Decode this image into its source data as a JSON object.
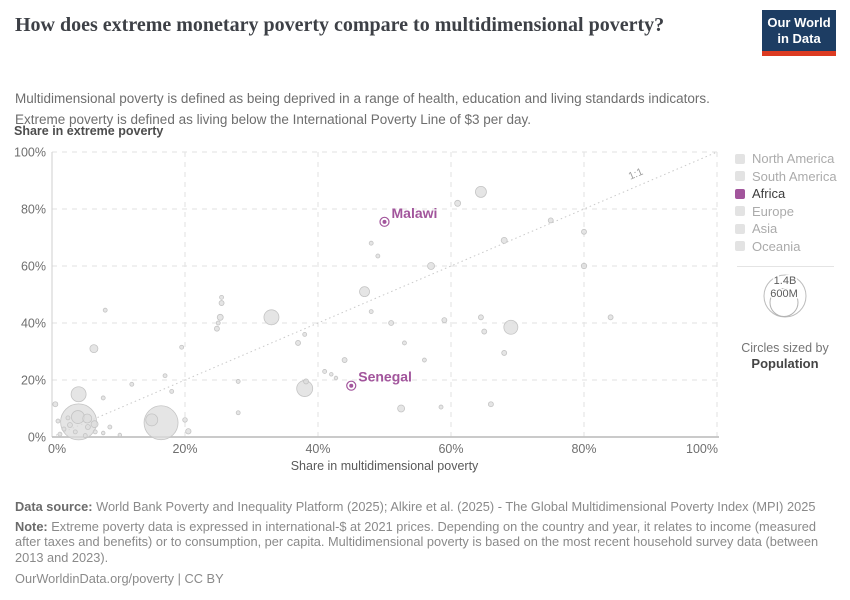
{
  "header": {
    "title": "How does extreme monetary poverty compare to multidimensional poverty?",
    "subtitle_line1": "Multidimensional poverty is defined as being deprived in a range of health, education and living standards indicators.",
    "subtitle_line2": "Extreme poverty is defined as living below the International Poverty Line of $3 per day.",
    "logo_line1": "Our World",
    "logo_line2": "in Data",
    "logo_bg": "#1d3d63",
    "logo_stripe": "#dc3a21"
  },
  "chart_data": {
    "type": "scatter",
    "xlabel": "Share in multidimensional poverty",
    "ylabel": "Share in extreme poverty",
    "xlim": [
      0,
      100
    ],
    "ylim": [
      0,
      100
    ],
    "grid": true,
    "x_ticks": [
      {
        "value": 0,
        "label": "0%"
      },
      {
        "value": 20,
        "label": "20%"
      },
      {
        "value": 40,
        "label": "40%"
      },
      {
        "value": 60,
        "label": "60%"
      },
      {
        "value": 80,
        "label": "80%"
      },
      {
        "value": 100,
        "label": "100%"
      }
    ],
    "y_ticks": [
      {
        "value": 0,
        "label": "0%"
      },
      {
        "value": 20,
        "label": "20%"
      },
      {
        "value": 40,
        "label": "40%"
      },
      {
        "value": 60,
        "label": "60%"
      },
      {
        "value": 80,
        "label": "80%"
      },
      {
        "value": 100,
        "label": "100%"
      }
    ],
    "reference_line": {
      "label": "1:1",
      "from": [
        0,
        0
      ],
      "to": [
        100,
        100
      ]
    },
    "point_fill": "#dcdcdc",
    "point_stroke": "#c4c4c4",
    "highlight_color": "#a2559c",
    "labeled_points": [
      {
        "name": "Malawi",
        "x": 50,
        "y": 75.5,
        "r": 3
      },
      {
        "name": "Senegal",
        "x": 45,
        "y": 18,
        "r": 3
      }
    ],
    "points": [
      {
        "x": 61,
        "y": 82,
        "r": 3
      },
      {
        "x": 64.5,
        "y": 86,
        "r": 5.5
      },
      {
        "x": 48,
        "y": 68,
        "r": 2
      },
      {
        "x": 49,
        "y": 63.5,
        "r": 2
      },
      {
        "x": 57,
        "y": 60,
        "r": 3.5
      },
      {
        "x": 68,
        "y": 69,
        "r": 3
      },
      {
        "x": 75,
        "y": 76,
        "r": 2.5
      },
      {
        "x": 80,
        "y": 72,
        "r": 2.5
      },
      {
        "x": 80,
        "y": 60,
        "r": 2.7
      },
      {
        "x": 47,
        "y": 51,
        "r": 5
      },
      {
        "x": 48,
        "y": 44,
        "r": 2
      },
      {
        "x": 51,
        "y": 40,
        "r": 2.5
      },
      {
        "x": 53,
        "y": 33,
        "r": 2
      },
      {
        "x": 44,
        "y": 27,
        "r": 2.5
      },
      {
        "x": 56,
        "y": 27,
        "r": 2
      },
      {
        "x": 59,
        "y": 41,
        "r": 2.5
      },
      {
        "x": 64.5,
        "y": 42,
        "r": 2.5
      },
      {
        "x": 65,
        "y": 37,
        "r": 2.5
      },
      {
        "x": 69,
        "y": 38.5,
        "r": 7
      },
      {
        "x": 68,
        "y": 29.5,
        "r": 2.5
      },
      {
        "x": 84,
        "y": 42,
        "r": 2.5
      },
      {
        "x": 52.5,
        "y": 10,
        "r": 3.5
      },
      {
        "x": 58.5,
        "y": 10.5,
        "r": 2
      },
      {
        "x": 66,
        "y": 11.5,
        "r": 2.5
      },
      {
        "x": 41,
        "y": 23,
        "r": 2
      },
      {
        "x": 42,
        "y": 22,
        "r": 1.8
      },
      {
        "x": 42.7,
        "y": 20.7,
        "r": 1.8
      },
      {
        "x": 38,
        "y": 17,
        "r": 8
      },
      {
        "x": 38.2,
        "y": 19.5,
        "r": 2.5
      },
      {
        "x": 38,
        "y": 36,
        "r": 2
      },
      {
        "x": 37,
        "y": 33,
        "r": 2.5
      },
      {
        "x": 33,
        "y": 42,
        "r": 7.5
      },
      {
        "x": 25.5,
        "y": 49,
        "r": 2
      },
      {
        "x": 25.5,
        "y": 47,
        "r": 2.5
      },
      {
        "x": 25.3,
        "y": 42,
        "r": 3
      },
      {
        "x": 25,
        "y": 40,
        "r": 2
      },
      {
        "x": 24.8,
        "y": 38,
        "r": 2.5
      },
      {
        "x": 19.5,
        "y": 31.5,
        "r": 2
      },
      {
        "x": 17,
        "y": 21.5,
        "r": 2
      },
      {
        "x": 12,
        "y": 18.5,
        "r": 2
      },
      {
        "x": 28,
        "y": 19.5,
        "r": 2
      },
      {
        "x": 6.3,
        "y": 31,
        "r": 4
      },
      {
        "x": 8,
        "y": 44.5,
        "r": 2
      },
      {
        "x": 4,
        "y": 15,
        "r": 7.5
      },
      {
        "x": 4,
        "y": 5.3,
        "r": 18
      },
      {
        "x": 16.4,
        "y": 5,
        "r": 17
      },
      {
        "x": 15,
        "y": 6,
        "r": 6
      },
      {
        "x": 7.7,
        "y": 13.7,
        "r": 2
      },
      {
        "x": 18,
        "y": 16,
        "r": 2
      },
      {
        "x": 20,
        "y": 6,
        "r": 2.3
      },
      {
        "x": 20.5,
        "y": 2,
        "r": 2.7
      },
      {
        "x": 28,
        "y": 8.5,
        "r": 2
      },
      {
        "x": 0.5,
        "y": 11.5,
        "r": 2.5
      },
      {
        "x": 1.8,
        "y": 2.8,
        "r": 2
      },
      {
        "x": 1.2,
        "y": 1,
        "r": 2
      },
      {
        "x": 2.7,
        "y": 4.2,
        "r": 2.5
      },
      {
        "x": 3.5,
        "y": 1.8,
        "r": 2
      },
      {
        "x": 5.4,
        "y": 3.5,
        "r": 2.5
      },
      {
        "x": 6.5,
        "y": 1.8,
        "r": 2
      },
      {
        "x": 7.7,
        "y": 1.4,
        "r": 1.8
      },
      {
        "x": 8.7,
        "y": 3.5,
        "r": 2
      },
      {
        "x": 10.2,
        "y": 0.7,
        "r": 1.8
      },
      {
        "x": 2.4,
        "y": 6.7,
        "r": 2
      },
      {
        "x": 0.9,
        "y": 5.6,
        "r": 2
      },
      {
        "x": 5,
        "y": 0.5,
        "r": 2
      },
      {
        "x": 3.9,
        "y": 7,
        "r": 6.5
      },
      {
        "x": 5.3,
        "y": 6.5,
        "r": 4.5
      },
      {
        "x": 6.4,
        "y": 4.5,
        "r": 3.5
      }
    ]
  },
  "legend": {
    "items": [
      {
        "label": "North America",
        "active": false
      },
      {
        "label": "South America",
        "active": false
      },
      {
        "label": "Africa",
        "active": true
      },
      {
        "label": "Europe",
        "active": false
      },
      {
        "label": "Asia",
        "active": false
      },
      {
        "label": "Oceania",
        "active": false
      }
    ],
    "active_color": "#a2559c",
    "inactive_color": "#e3e3e3",
    "size_legend": {
      "outer_label": "1.4B",
      "inner_label": "600M",
      "caption": "Circles sized by",
      "caption_bold": "Population"
    }
  },
  "footer": {
    "data_source_label": "Data source:",
    "data_source_text": "World Bank Poverty and Inequality Platform (2025); Alkire et al. (2025) - The Global Multidimensional Poverty Index (MPI) 2025",
    "note_label": "Note:",
    "note_text": "Extreme poverty data is expressed in international-$ at 2021 prices. Depending on the country and year, it relates to income (measured after taxes and benefits) or to consumption, per capita. Multidimensional poverty is based on the most recent household survey data (between 2013 and 2023).",
    "link_text": "OurWorldinData.org/poverty | CC BY"
  }
}
